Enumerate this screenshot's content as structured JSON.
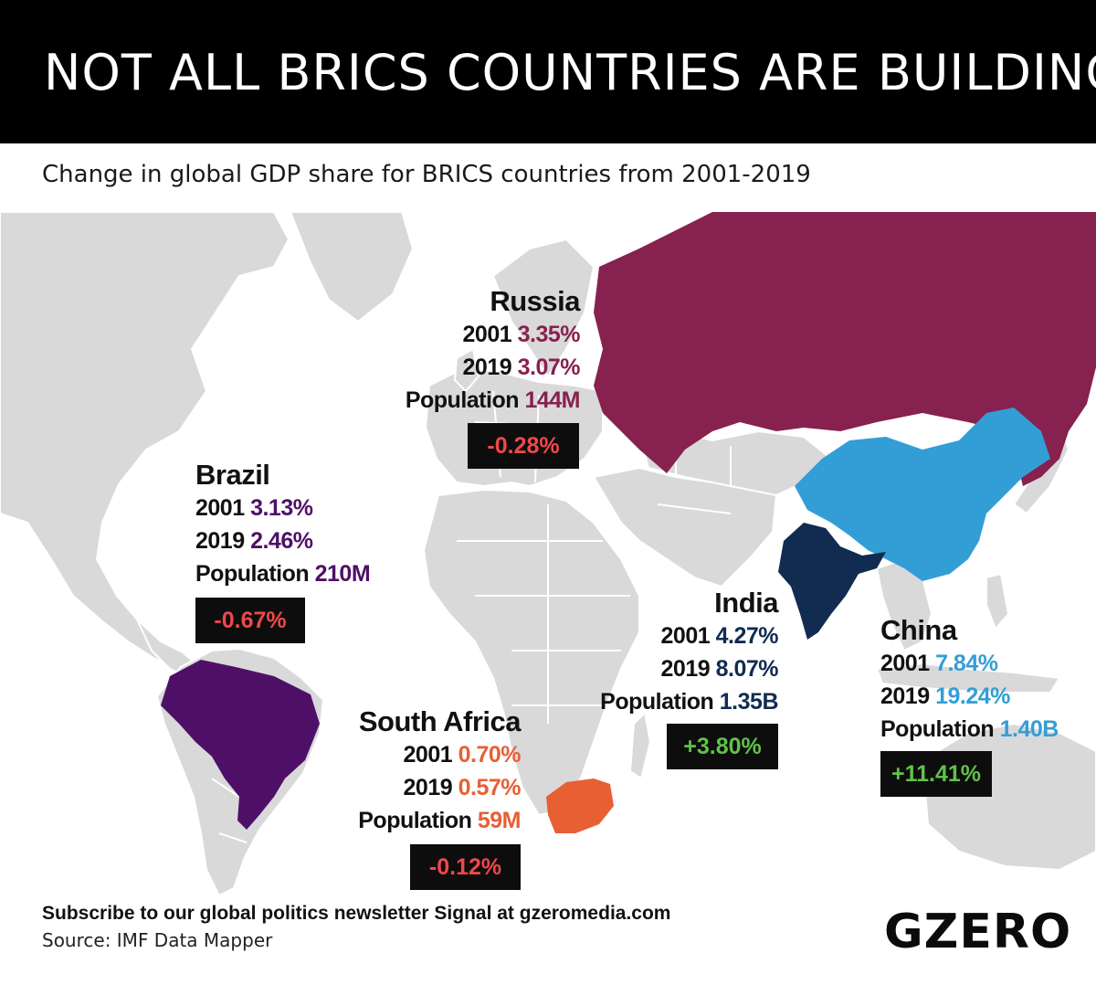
{
  "title": "NOT ALL BRICS COUNTRIES ARE BUILDING",
  "subtitle": "Change in global GDP share for BRICS countries from 2001-2019",
  "colors": {
    "russia": "#87214f",
    "brazil": "#4e1067",
    "south_africa": "#e85f34",
    "india": "#112b51",
    "china": "#339ed6",
    "land": "#d9d9d9",
    "negative": "#f0474b",
    "positive": "#5fc248"
  },
  "countries": {
    "russia": {
      "name": "Russia",
      "label_2001": "2001",
      "value_2001": "3.35%",
      "label_2019": "2019",
      "value_2019": "3.07%",
      "label_population": "Population",
      "population": "144M",
      "change": "-0.28%"
    },
    "brazil": {
      "name": "Brazil",
      "label_2001": "2001",
      "value_2001": "3.13%",
      "label_2019": "2019",
      "value_2019": "2.46%",
      "label_population": "Population",
      "population": "210M",
      "change": "-0.67%"
    },
    "south_africa": {
      "name": "South Africa",
      "label_2001": "2001",
      "value_2001": "0.70%",
      "label_2019": "2019",
      "value_2019": "0.57%",
      "label_population": "Population",
      "population": "59M",
      "change": "-0.12%"
    },
    "india": {
      "name": "India",
      "label_2001": "2001",
      "value_2001": "4.27%",
      "label_2019": "2019",
      "value_2019": "8.07%",
      "label_population": "Population",
      "population": "1.35B",
      "change": "+3.80%"
    },
    "china": {
      "name": "China",
      "label_2001": "2001",
      "value_2001": "7.84%",
      "label_2019": "2019",
      "value_2019": "19.24%",
      "label_population": "Population",
      "population": "1.40B",
      "change": "+11.41%"
    }
  },
  "footer": {
    "newsletter": "Subscribe to our global politics newsletter Signal at gzeromedia.com",
    "source": "Source: IMF Data Mapper"
  },
  "logo": "GZERO"
}
